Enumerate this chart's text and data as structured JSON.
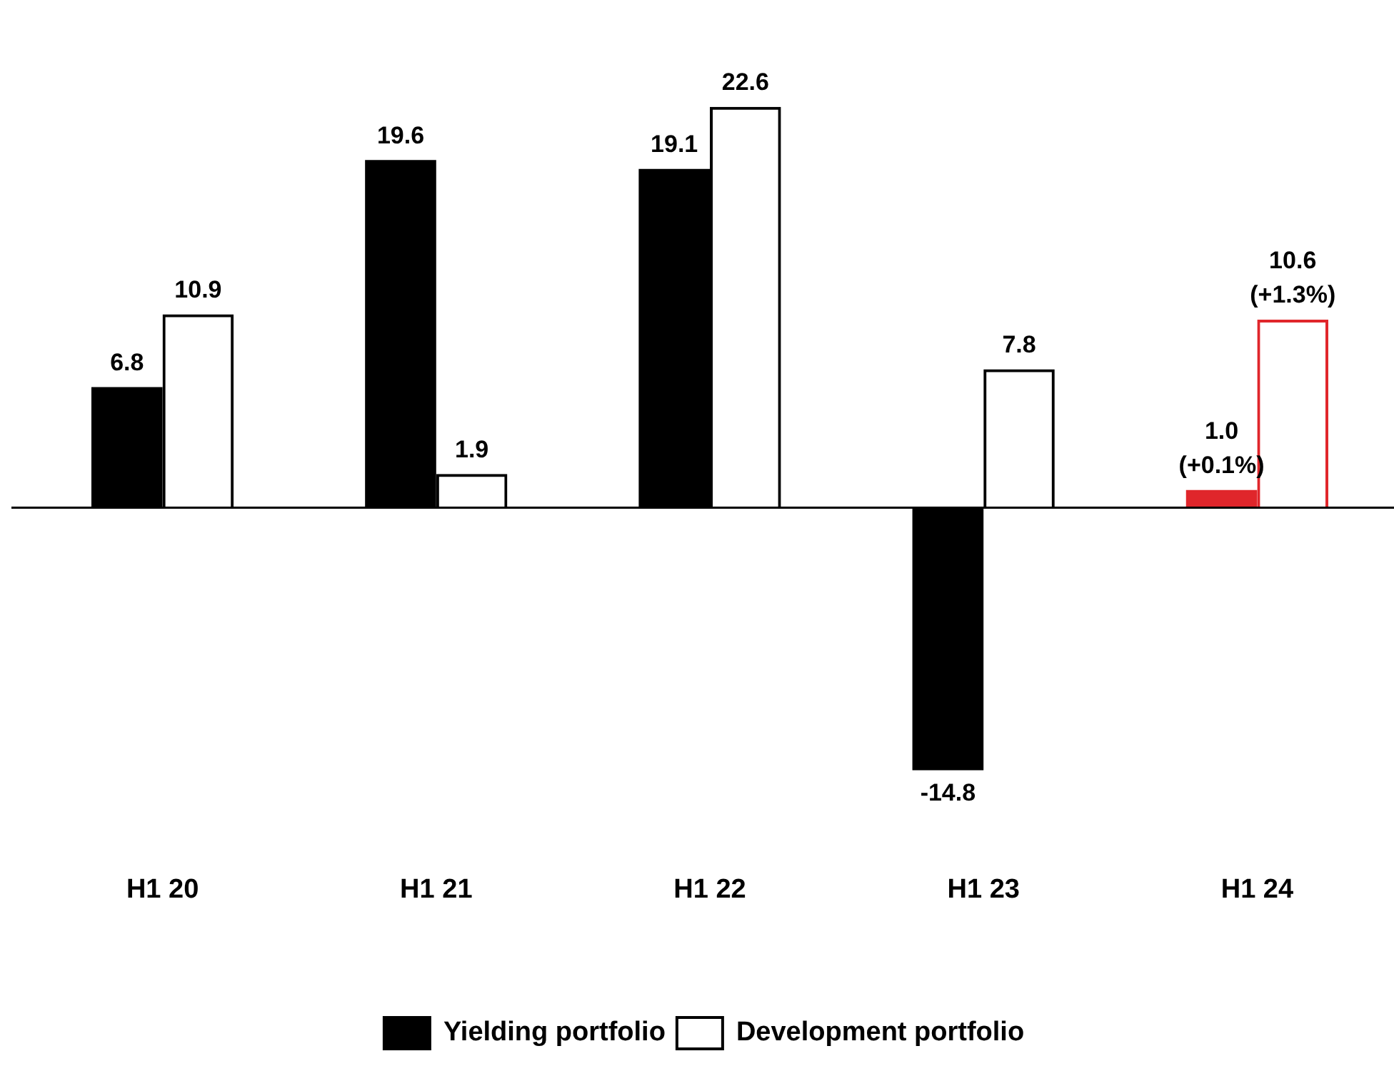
{
  "chart_data": {
    "type": "bar",
    "categories": [
      "H1 20",
      "H1 21",
      "H1 22",
      "H1 23",
      "H1 24"
    ],
    "series": [
      {
        "name": "Yielding portfolio",
        "colors": [
          "#000000",
          "#000000",
          "#000000",
          "#000000",
          "#e0262b"
        ],
        "values": [
          6.8,
          19.6,
          19.1,
          -14.8,
          1.0
        ],
        "value_labels": [
          "6.8",
          "19.6",
          "19.1",
          "-14.8",
          "1.0 (+0.1%)"
        ]
      },
      {
        "name": "Development portfolio",
        "colors": [
          "#000000",
          "#000000",
          "#000000",
          "#000000",
          "#e0262b"
        ],
        "values": [
          10.9,
          1.9,
          22.6,
          7.8,
          10.6
        ],
        "value_labels": [
          "10.9",
          "1.9",
          "22.6",
          "7.8",
          "10.6 (+1.3%)"
        ]
      }
    ],
    "legend": "bottom"
  }
}
